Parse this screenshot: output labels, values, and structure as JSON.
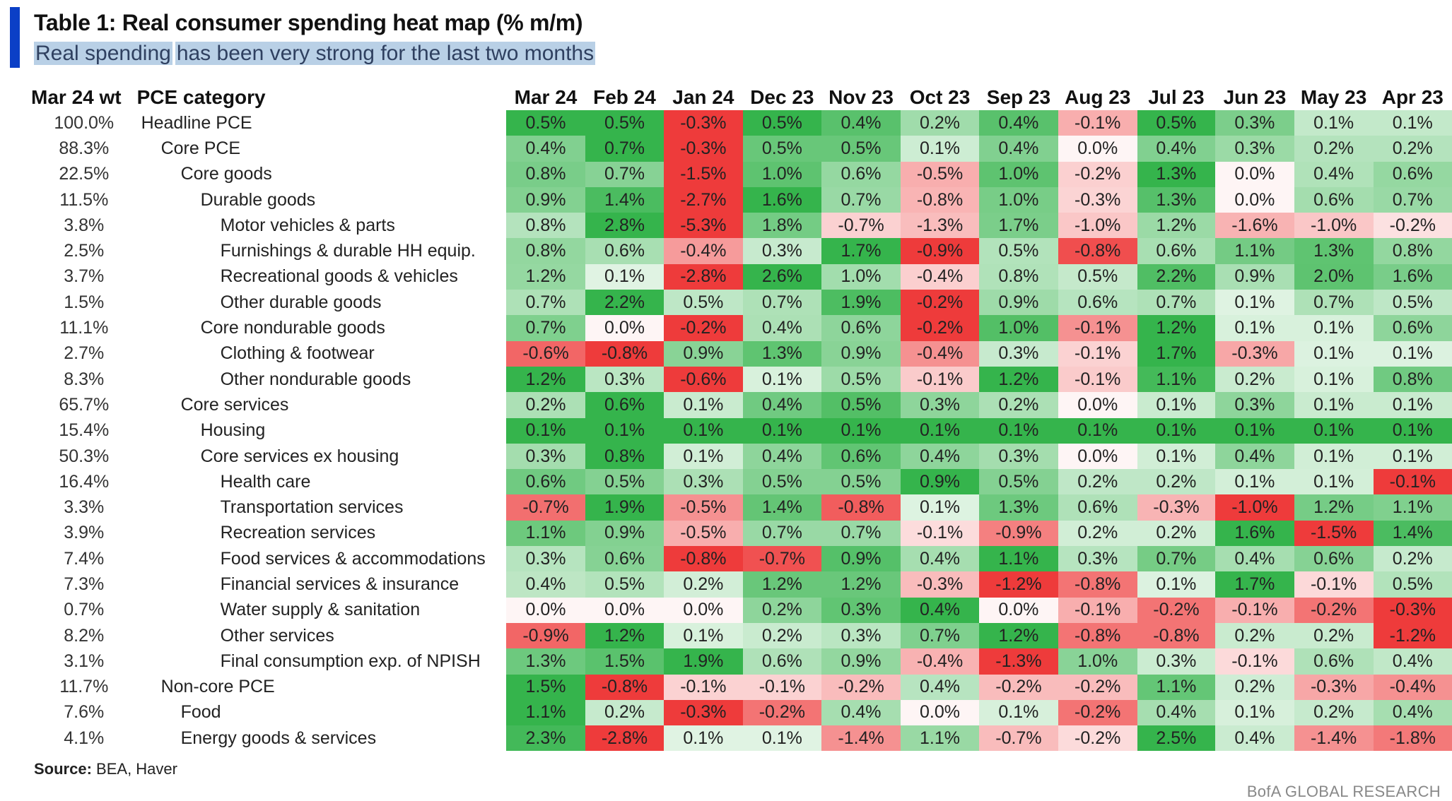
{
  "header": {
    "title": "Table 1: Real consumer spending heat map (% m/m)",
    "subtitle_part1": "Real spending",
    "subtitle_part2": "has been very strong for the last two months"
  },
  "footer": {
    "source_label": "Source:",
    "source_text": "BEA, Haver",
    "brand": "BofA GLOBAL RESEARCH"
  },
  "colors": {
    "accent": "#0b3fc6",
    "positive": "#35b44c",
    "negative": "#ee3b3b",
    "neutral": "#ffffff"
  },
  "chart_data": {
    "type": "heatmap",
    "title": "Table 1: Real consumer spending heat map (% m/m)",
    "subtitle": "Real spending has been very strong for the last two months",
    "col_header_weight": "Mar 24 wt",
    "col_header_category": "PCE category",
    "months": [
      "Mar 24",
      "Feb 24",
      "Jan 24",
      "Dec 23",
      "Nov 23",
      "Oct 23",
      "Sep 23",
      "Aug 23",
      "Jul 23",
      "Jun 23",
      "May 23",
      "Apr 23"
    ],
    "rows": [
      {
        "wt": "100.0%",
        "cat": "Headline PCE",
        "level": 0,
        "values": [
          0.5,
          0.5,
          -0.3,
          0.5,
          0.4,
          0.2,
          0.4,
          -0.1,
          0.5,
          0.3,
          0.1,
          0.1
        ]
      },
      {
        "wt": "88.3%",
        "cat": "Core PCE",
        "level": 1,
        "values": [
          0.4,
          0.7,
          -0.3,
          0.5,
          0.5,
          0.1,
          0.4,
          0.0,
          0.4,
          0.3,
          0.2,
          0.2
        ]
      },
      {
        "wt": "22.5%",
        "cat": "Core goods",
        "level": 2,
        "values": [
          0.8,
          0.7,
          -1.5,
          1.0,
          0.6,
          -0.5,
          1.0,
          -0.2,
          1.3,
          0.0,
          0.4,
          0.6
        ]
      },
      {
        "wt": "11.5%",
        "cat": "Durable goods",
        "level": 3,
        "values": [
          0.9,
          1.4,
          -2.7,
          1.6,
          0.7,
          -0.8,
          1.0,
          -0.3,
          1.3,
          0.0,
          0.6,
          0.7
        ]
      },
      {
        "wt": "3.8%",
        "cat": "Motor vehicles & parts",
        "level": 4,
        "values": [
          0.8,
          2.8,
          -5.3,
          1.8,
          -0.7,
          -1.3,
          1.7,
          -1.0,
          1.2,
          -1.6,
          -1.0,
          -0.2
        ]
      },
      {
        "wt": "2.5%",
        "cat": "Furnishings & durable HH equip.",
        "level": 4,
        "values": [
          0.8,
          0.6,
          -0.4,
          0.3,
          1.7,
          -0.9,
          0.5,
          -0.8,
          0.6,
          1.1,
          1.3,
          0.8
        ]
      },
      {
        "wt": "3.7%",
        "cat": "Recreational goods & vehicles",
        "level": 4,
        "values": [
          1.2,
          0.1,
          -2.8,
          2.6,
          1.0,
          -0.4,
          0.8,
          0.5,
          2.2,
          0.9,
          2.0,
          1.6
        ]
      },
      {
        "wt": "1.5%",
        "cat": "Other durable goods",
        "level": 4,
        "values": [
          0.7,
          2.2,
          0.5,
          0.7,
          1.9,
          -0.2,
          0.9,
          0.6,
          0.7,
          0.1,
          0.7,
          0.5
        ]
      },
      {
        "wt": "11.1%",
        "cat": "Core nondurable goods",
        "level": 3,
        "values": [
          0.7,
          0.0,
          -0.2,
          0.4,
          0.6,
          -0.2,
          1.0,
          -0.1,
          1.2,
          0.1,
          0.1,
          0.6
        ]
      },
      {
        "wt": "2.7%",
        "cat": "Clothing & footwear",
        "level": 4,
        "values": [
          -0.6,
          -0.8,
          0.9,
          1.3,
          0.9,
          -0.4,
          0.3,
          -0.1,
          1.7,
          -0.3,
          0.1,
          0.1
        ]
      },
      {
        "wt": "8.3%",
        "cat": "Other nondurable goods",
        "level": 4,
        "values": [
          1.2,
          0.3,
          -0.6,
          0.1,
          0.5,
          -0.1,
          1.2,
          -0.1,
          1.1,
          0.2,
          0.1,
          0.8
        ]
      },
      {
        "wt": "65.7%",
        "cat": "Core services",
        "level": 2,
        "values": [
          0.2,
          0.6,
          0.1,
          0.4,
          0.5,
          0.3,
          0.2,
          0.0,
          0.1,
          0.3,
          0.1,
          0.1
        ]
      },
      {
        "wt": "15.4%",
        "cat": "Housing",
        "level": 3,
        "values": [
          0.1,
          0.1,
          0.1,
          0.1,
          0.1,
          0.1,
          0.1,
          0.1,
          0.1,
          0.1,
          0.1,
          0.1
        ]
      },
      {
        "wt": "50.3%",
        "cat": "Core services ex housing",
        "level": 3,
        "values": [
          0.3,
          0.8,
          0.1,
          0.4,
          0.6,
          0.4,
          0.3,
          0.0,
          0.1,
          0.4,
          0.1,
          0.1
        ]
      },
      {
        "wt": "16.4%",
        "cat": "Health care",
        "level": 4,
        "values": [
          0.6,
          0.5,
          0.3,
          0.5,
          0.5,
          0.9,
          0.5,
          0.2,
          0.2,
          0.1,
          0.1,
          -0.1
        ]
      },
      {
        "wt": "3.3%",
        "cat": "Transportation services",
        "level": 4,
        "values": [
          -0.7,
          1.9,
          -0.5,
          1.4,
          -0.8,
          0.1,
          1.3,
          0.6,
          -0.3,
          -1.0,
          1.2,
          1.1
        ]
      },
      {
        "wt": "3.9%",
        "cat": "Recreation services",
        "level": 4,
        "values": [
          1.1,
          0.9,
          -0.5,
          0.7,
          0.7,
          -0.1,
          -0.9,
          0.2,
          0.2,
          1.6,
          -1.5,
          1.4
        ]
      },
      {
        "wt": "7.4%",
        "cat": "Food services & accommodations",
        "level": 4,
        "values": [
          0.3,
          0.6,
          -0.8,
          -0.7,
          0.9,
          0.4,
          1.1,
          0.3,
          0.7,
          0.4,
          0.6,
          0.2
        ]
      },
      {
        "wt": "7.3%",
        "cat": "Financial services & insurance",
        "level": 4,
        "values": [
          0.4,
          0.5,
          0.2,
          1.2,
          1.2,
          -0.3,
          -1.2,
          -0.8,
          0.1,
          1.7,
          -0.1,
          0.5
        ]
      },
      {
        "wt": "0.7%",
        "cat": "Water supply & sanitation",
        "level": 4,
        "values": [
          0.0,
          0.0,
          0.0,
          0.2,
          0.3,
          0.4,
          0.0,
          -0.1,
          -0.2,
          -0.1,
          -0.2,
          -0.3
        ]
      },
      {
        "wt": "8.2%",
        "cat": "Other services",
        "level": 4,
        "values": [
          -0.9,
          1.2,
          0.1,
          0.2,
          0.3,
          0.7,
          1.2,
          -0.8,
          -0.8,
          0.2,
          0.2,
          -1.2
        ]
      },
      {
        "wt": "3.1%",
        "cat": "Final consumption exp. of NPISH",
        "level": 4,
        "values": [
          1.3,
          1.5,
          1.9,
          0.6,
          0.9,
          -0.4,
          -1.3,
          1.0,
          0.3,
          -0.1,
          0.6,
          0.4
        ]
      },
      {
        "wt": "11.7%",
        "cat": "Non-core PCE",
        "level": 1,
        "values": [
          1.5,
          -0.8,
          -0.1,
          -0.1,
          -0.2,
          0.4,
          -0.2,
          -0.2,
          1.1,
          0.2,
          -0.3,
          -0.4
        ]
      },
      {
        "wt": "7.6%",
        "cat": "Food",
        "level": 2,
        "values": [
          1.1,
          0.2,
          -0.3,
          -0.2,
          0.4,
          0.0,
          0.1,
          -0.2,
          0.4,
          0.1,
          0.2,
          0.4
        ]
      },
      {
        "wt": "4.1%",
        "cat": "Energy goods & services",
        "level": 2,
        "values": [
          2.3,
          -2.8,
          0.1,
          0.1,
          -1.4,
          1.1,
          -0.7,
          -0.2,
          2.5,
          0.4,
          -1.4,
          -1.8
        ]
      }
    ]
  }
}
